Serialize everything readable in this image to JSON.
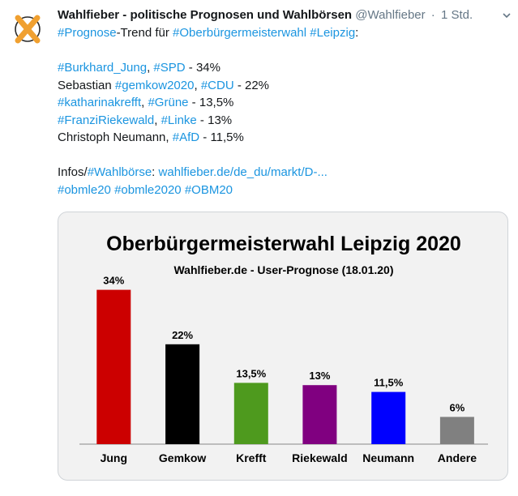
{
  "tweet": {
    "display_name": "Wahlfieber - politische Prognosen und Wahlbörsen",
    "handle": "@Wahlfieber",
    "separator": "·",
    "time": "1 Std.",
    "line1": {
      "tag1": "#Prognose",
      "text1": "-Trend für ",
      "tag2": "#Oberbürgermeisterwahl",
      "text2": " ",
      "tag3": "#Leipzig",
      "text3": ":"
    },
    "line2": {
      "tag1": "#Burkhard_Jung",
      "text1": ", ",
      "tag2": "#SPD",
      "text2": " - 34%"
    },
    "line3": {
      "text0": "Sebastian ",
      "tag1": "#gemkow2020",
      "text1": ", ",
      "tag2": "#CDU",
      "text2": " - 22%"
    },
    "line4": {
      "tag1": "#katharinakrefft",
      "text1": ", ",
      "tag2": "#Grüne",
      "text2": " - 13,5%"
    },
    "line5": {
      "tag1": "#FranziRiekewald",
      "text1": ", ",
      "tag2": "#Linke",
      "text2": " - 13%"
    },
    "line6": {
      "text0": "Christoph Neumann, ",
      "tag1": "#AfD",
      "text1": " - 11,5%"
    },
    "line7": {
      "text0": "Infos/",
      "tag1": "#Wahlbörse",
      "text1": ": ",
      "link": "wahlfieber.de/de_du/markt/D-..."
    },
    "line8": {
      "tag1": "#obmle20",
      "tag2": "#obmle2020",
      "tag3": "#OBM20"
    }
  },
  "colors": {
    "link": "#1b95e0",
    "card_bg": "#f2f2f2",
    "logo_orange": "#f0a030"
  },
  "icons": {
    "avatar": "ballot-cross-logo-icon",
    "menu": "chevron-down-icon"
  },
  "chart_data": {
    "type": "bar",
    "title": "Oberbürgermeisterwahl Leipzig 2020",
    "subtitle": "Wahlfieber.de - User-Prognose (18.01.20)",
    "categories": [
      "Jung",
      "Gemkow",
      "Krefft",
      "Riekewald",
      "Neumann",
      "Andere"
    ],
    "values": [
      34,
      22,
      13.5,
      13,
      11.5,
      6
    ],
    "labels": [
      "34%",
      "22%",
      "13,5%",
      "13%",
      "11,5%",
      "6%"
    ],
    "colors": [
      "#cc0000",
      "#000000",
      "#4e9a1e",
      "#800080",
      "#0000ff",
      "#808080"
    ],
    "ylim": [
      0,
      40
    ],
    "xlabel": "",
    "ylabel": "",
    "grid": false,
    "legend": "none"
  }
}
